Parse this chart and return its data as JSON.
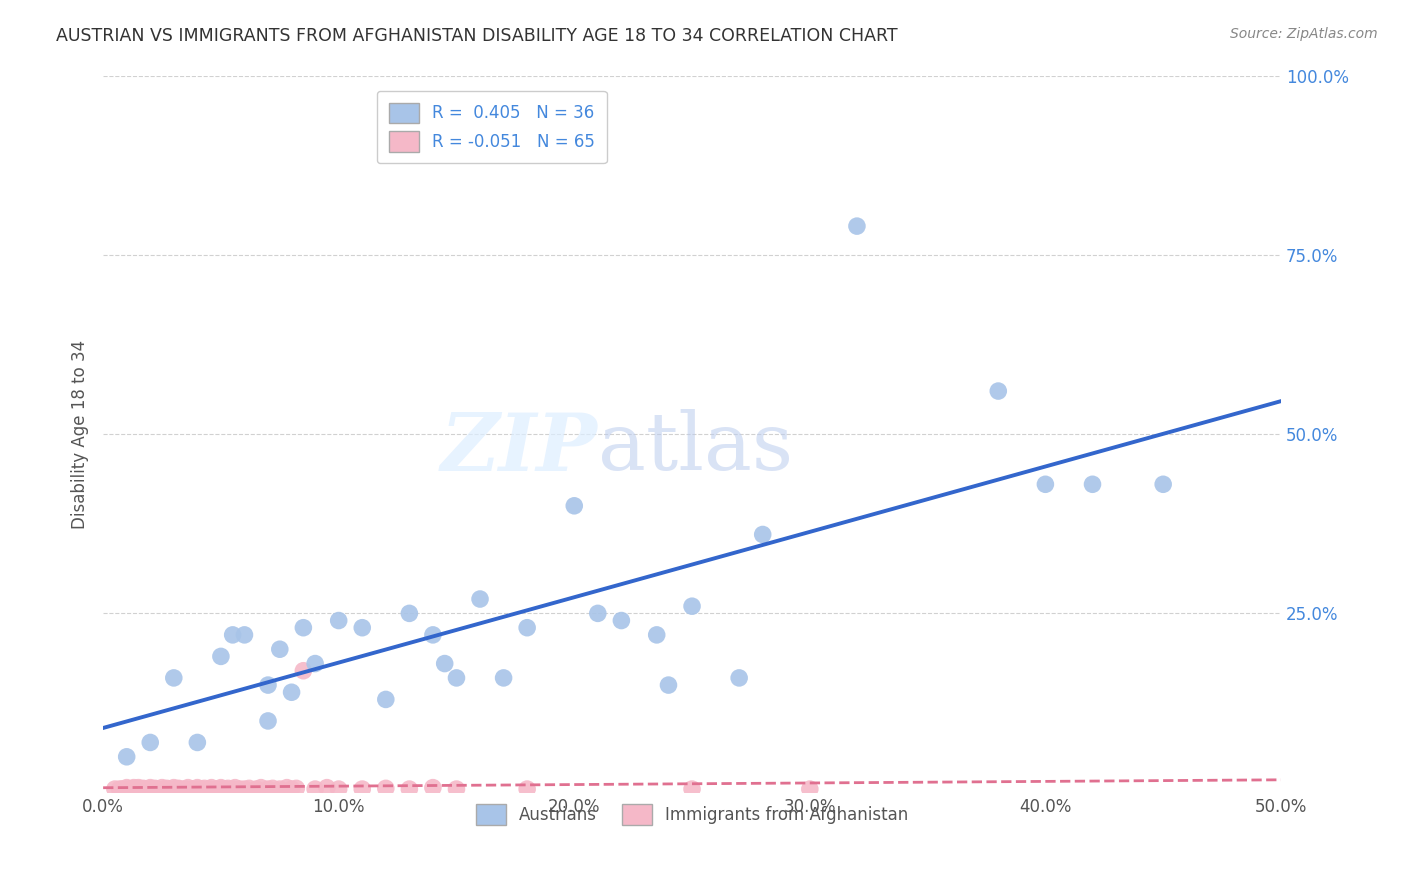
{
  "title": "AUSTRIAN VS IMMIGRANTS FROM AFGHANISTAN DISABILITY AGE 18 TO 34 CORRELATION CHART",
  "source": "Source: ZipAtlas.com",
  "xlabel_ticks": [
    "0.0%",
    "10.0%",
    "20.0%",
    "30.0%",
    "40.0%",
    "50.0%"
  ],
  "xlabel_tick_vals": [
    0.0,
    0.1,
    0.2,
    0.3,
    0.4,
    0.5
  ],
  "ylabel": "Disability Age 18 to 34",
  "right_ytick_labels": [
    "100.0%",
    "75.0%",
    "50.0%",
    "25.0%",
    ""
  ],
  "right_ytick_vals": [
    1.0,
    0.75,
    0.5,
    0.25,
    0.0
  ],
  "xlim": [
    0.0,
    0.5
  ],
  "ylim": [
    0.0,
    1.0
  ],
  "R_austrians": 0.405,
  "N_austrians": 36,
  "R_afghanistan": -0.051,
  "N_afghanistan": 65,
  "legend_label_1": "Austrians",
  "legend_label_2": "Immigrants from Afghanistan",
  "blue_color": "#A8C4E8",
  "blue_line_color": "#3366CC",
  "pink_color": "#F5B8C8",
  "pink_line_color": "#E07090",
  "austrians_x": [
    0.01,
    0.02,
    0.03,
    0.04,
    0.05,
    0.055,
    0.06,
    0.07,
    0.07,
    0.075,
    0.08,
    0.085,
    0.09,
    0.1,
    0.11,
    0.12,
    0.13,
    0.14,
    0.145,
    0.15,
    0.16,
    0.17,
    0.18,
    0.2,
    0.21,
    0.22,
    0.235,
    0.24,
    0.25,
    0.27,
    0.28,
    0.32,
    0.38,
    0.4,
    0.42,
    0.45
  ],
  "austrians_y": [
    0.05,
    0.07,
    0.16,
    0.07,
    0.19,
    0.22,
    0.22,
    0.1,
    0.15,
    0.2,
    0.14,
    0.23,
    0.18,
    0.24,
    0.23,
    0.13,
    0.25,
    0.22,
    0.18,
    0.16,
    0.27,
    0.16,
    0.23,
    0.4,
    0.25,
    0.24,
    0.22,
    0.15,
    0.26,
    0.16,
    0.36,
    0.79,
    0.56,
    0.43,
    0.43,
    0.43
  ],
  "afghan_x": [
    0.005,
    0.007,
    0.008,
    0.01,
    0.01,
    0.012,
    0.013,
    0.015,
    0.015,
    0.016,
    0.017,
    0.018,
    0.02,
    0.02,
    0.021,
    0.022,
    0.023,
    0.025,
    0.026,
    0.027,
    0.028,
    0.03,
    0.03,
    0.031,
    0.032,
    0.033,
    0.035,
    0.036,
    0.038,
    0.04,
    0.04,
    0.042,
    0.043,
    0.045,
    0.046,
    0.048,
    0.05,
    0.05,
    0.052,
    0.053,
    0.055,
    0.056,
    0.058,
    0.06,
    0.062,
    0.065,
    0.067,
    0.07,
    0.072,
    0.075,
    0.078,
    0.08,
    0.082,
    0.085,
    0.09,
    0.095,
    0.1,
    0.11,
    0.12,
    0.13,
    0.14,
    0.15,
    0.18,
    0.25,
    0.3
  ],
  "afghan_y": [
    0.005,
    0.005,
    0.005,
    0.005,
    0.007,
    0.005,
    0.007,
    0.005,
    0.007,
    0.005,
    0.006,
    0.005,
    0.005,
    0.007,
    0.005,
    0.006,
    0.005,
    0.007,
    0.005,
    0.006,
    0.005,
    0.005,
    0.007,
    0.005,
    0.006,
    0.005,
    0.005,
    0.007,
    0.005,
    0.005,
    0.007,
    0.005,
    0.006,
    0.005,
    0.007,
    0.005,
    0.005,
    0.007,
    0.005,
    0.006,
    0.005,
    0.007,
    0.005,
    0.005,
    0.006,
    0.005,
    0.007,
    0.005,
    0.006,
    0.005,
    0.007,
    0.005,
    0.006,
    0.17,
    0.005,
    0.007,
    0.005,
    0.005,
    0.006,
    0.005,
    0.007,
    0.005,
    0.005,
    0.005,
    0.005
  ],
  "watermark_zip": "ZIP",
  "watermark_atlas": "atlas",
  "background_color": "#FFFFFF",
  "grid_color": "#CCCCCC",
  "title_color": "#333333",
  "source_color": "#888888",
  "right_axis_color": "#4488DD",
  "bottom_legend_color": "#555555"
}
